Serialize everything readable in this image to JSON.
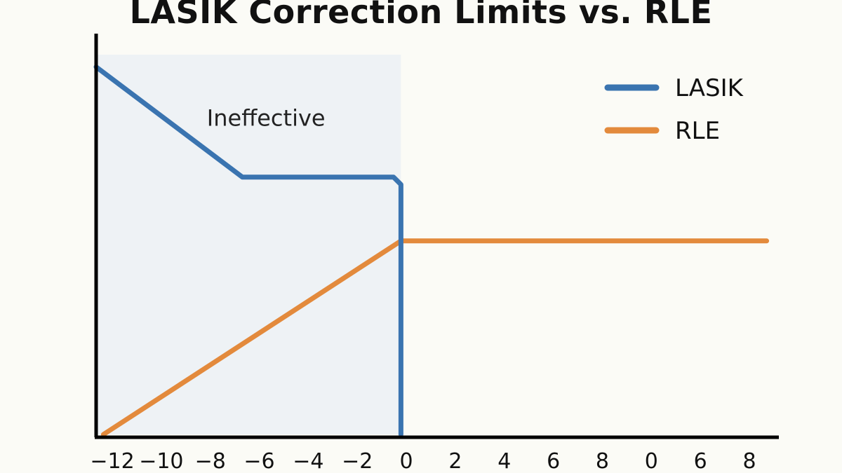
{
  "chart_data": {
    "type": "line",
    "title": "LASIK Correction Limits vs. RLE",
    "xlabel": "",
    "ylabel": "",
    "x_tick_labels": [
      "−12",
      "−10",
      "−8",
      "−6",
      "−4",
      "−2",
      "0",
      "2",
      "4",
      "6",
      "8",
      "0",
      "6",
      "8"
    ],
    "xlim": [
      -12.5,
      15.5
    ],
    "ylim": [
      0,
      15.5
    ],
    "grid": false,
    "legend_position": "top-right",
    "series": [
      {
        "name": "LASIK",
        "color": "#3a74b0",
        "points": [
          [
            -12.5,
            15
          ],
          [
            -6.5,
            10.5
          ],
          [
            -0.3,
            10.5
          ],
          [
            0,
            10.2
          ],
          [
            0,
            0
          ]
        ]
      },
      {
        "name": "RLE",
        "color": "#e38a3c",
        "points": [
          [
            -12.2,
            0
          ],
          [
            0,
            7.9
          ],
          [
            15,
            7.9
          ]
        ]
      }
    ],
    "shaded_region": {
      "label": "Ineffective",
      "color": "#eef2f5",
      "x_range": [
        -12.5,
        0
      ],
      "y_top": 15.5
    }
  }
}
